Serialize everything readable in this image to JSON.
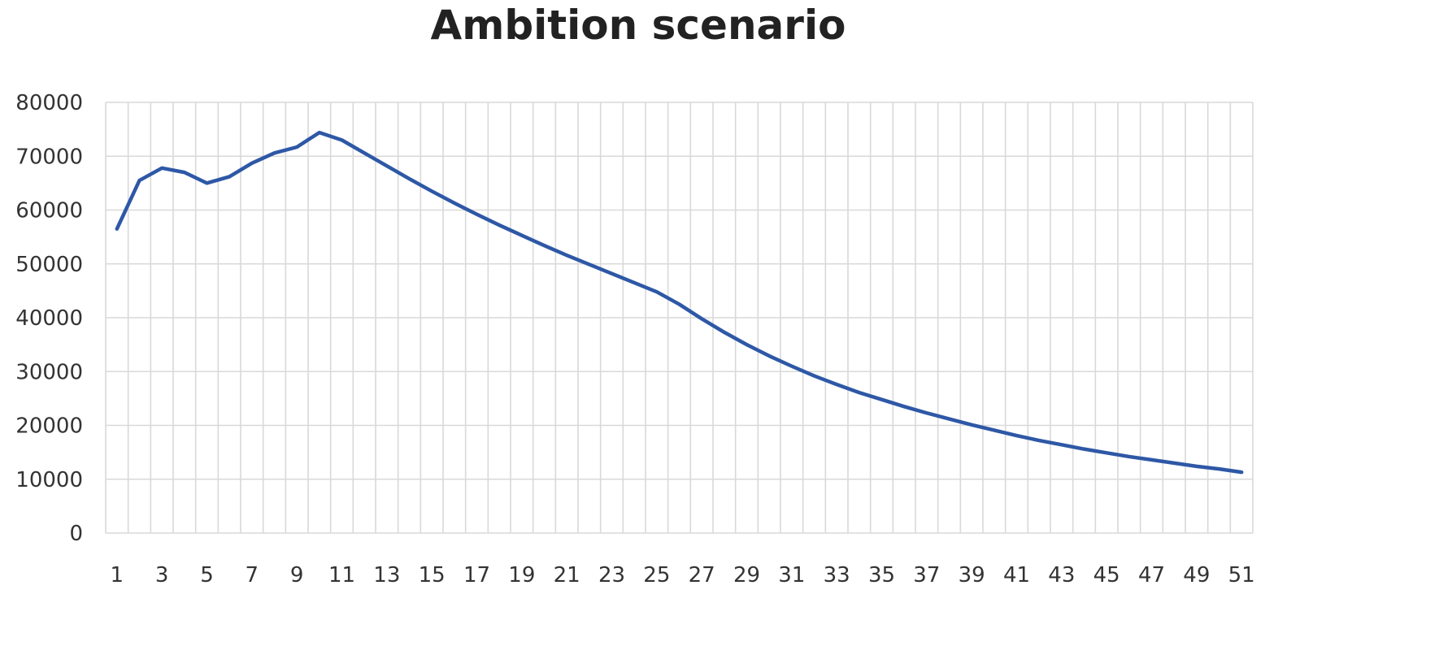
{
  "chart_data": {
    "type": "line",
    "title": "Ambition scenario",
    "xlabel": "",
    "ylabel": "",
    "x": [
      1,
      2,
      3,
      4,
      5,
      6,
      7,
      8,
      9,
      10,
      11,
      12,
      13,
      14,
      15,
      16,
      17,
      18,
      19,
      20,
      21,
      22,
      23,
      24,
      25,
      26,
      27,
      28,
      29,
      30,
      31,
      32,
      33,
      34,
      35,
      36,
      37,
      38,
      39,
      40,
      41,
      42,
      43,
      44,
      45,
      46,
      47,
      48,
      49,
      50,
      51
    ],
    "x_tick_labels": [
      "1",
      "3",
      "5",
      "7",
      "9",
      "11",
      "13",
      "15",
      "17",
      "19",
      "21",
      "23",
      "25",
      "27",
      "29",
      "31",
      "33",
      "35",
      "37",
      "39",
      "41",
      "43",
      "45",
      "47",
      "49",
      "51"
    ],
    "ylim": [
      0,
      80000
    ],
    "y_ticks": [
      0,
      10000,
      20000,
      30000,
      40000,
      50000,
      60000,
      70000,
      80000
    ],
    "y_tick_labels": [
      "0",
      "10000",
      "20000",
      "30000",
      "40000",
      "50000",
      "60000",
      "70000",
      "80000"
    ],
    "grid": true,
    "legend": "none",
    "series": [
      {
        "color": "#2e58a6",
        "values": [
          56500,
          65500,
          67800,
          67000,
          65000,
          66200,
          68700,
          70600,
          71700,
          74400,
          73000,
          70600,
          68200,
          65800,
          63500,
          61300,
          59200,
          57200,
          55300,
          53400,
          51600,
          49900,
          48200,
          46500,
          44800,
          42500,
          39800,
          37300,
          35000,
          32900,
          31000,
          29200,
          27600,
          26100,
          24800,
          23500,
          22300,
          21200,
          20100,
          19100,
          18100,
          17200,
          16400,
          15600,
          14900,
          14200,
          13600,
          13000,
          12400,
          11900,
          11300
        ]
      }
    ]
  }
}
